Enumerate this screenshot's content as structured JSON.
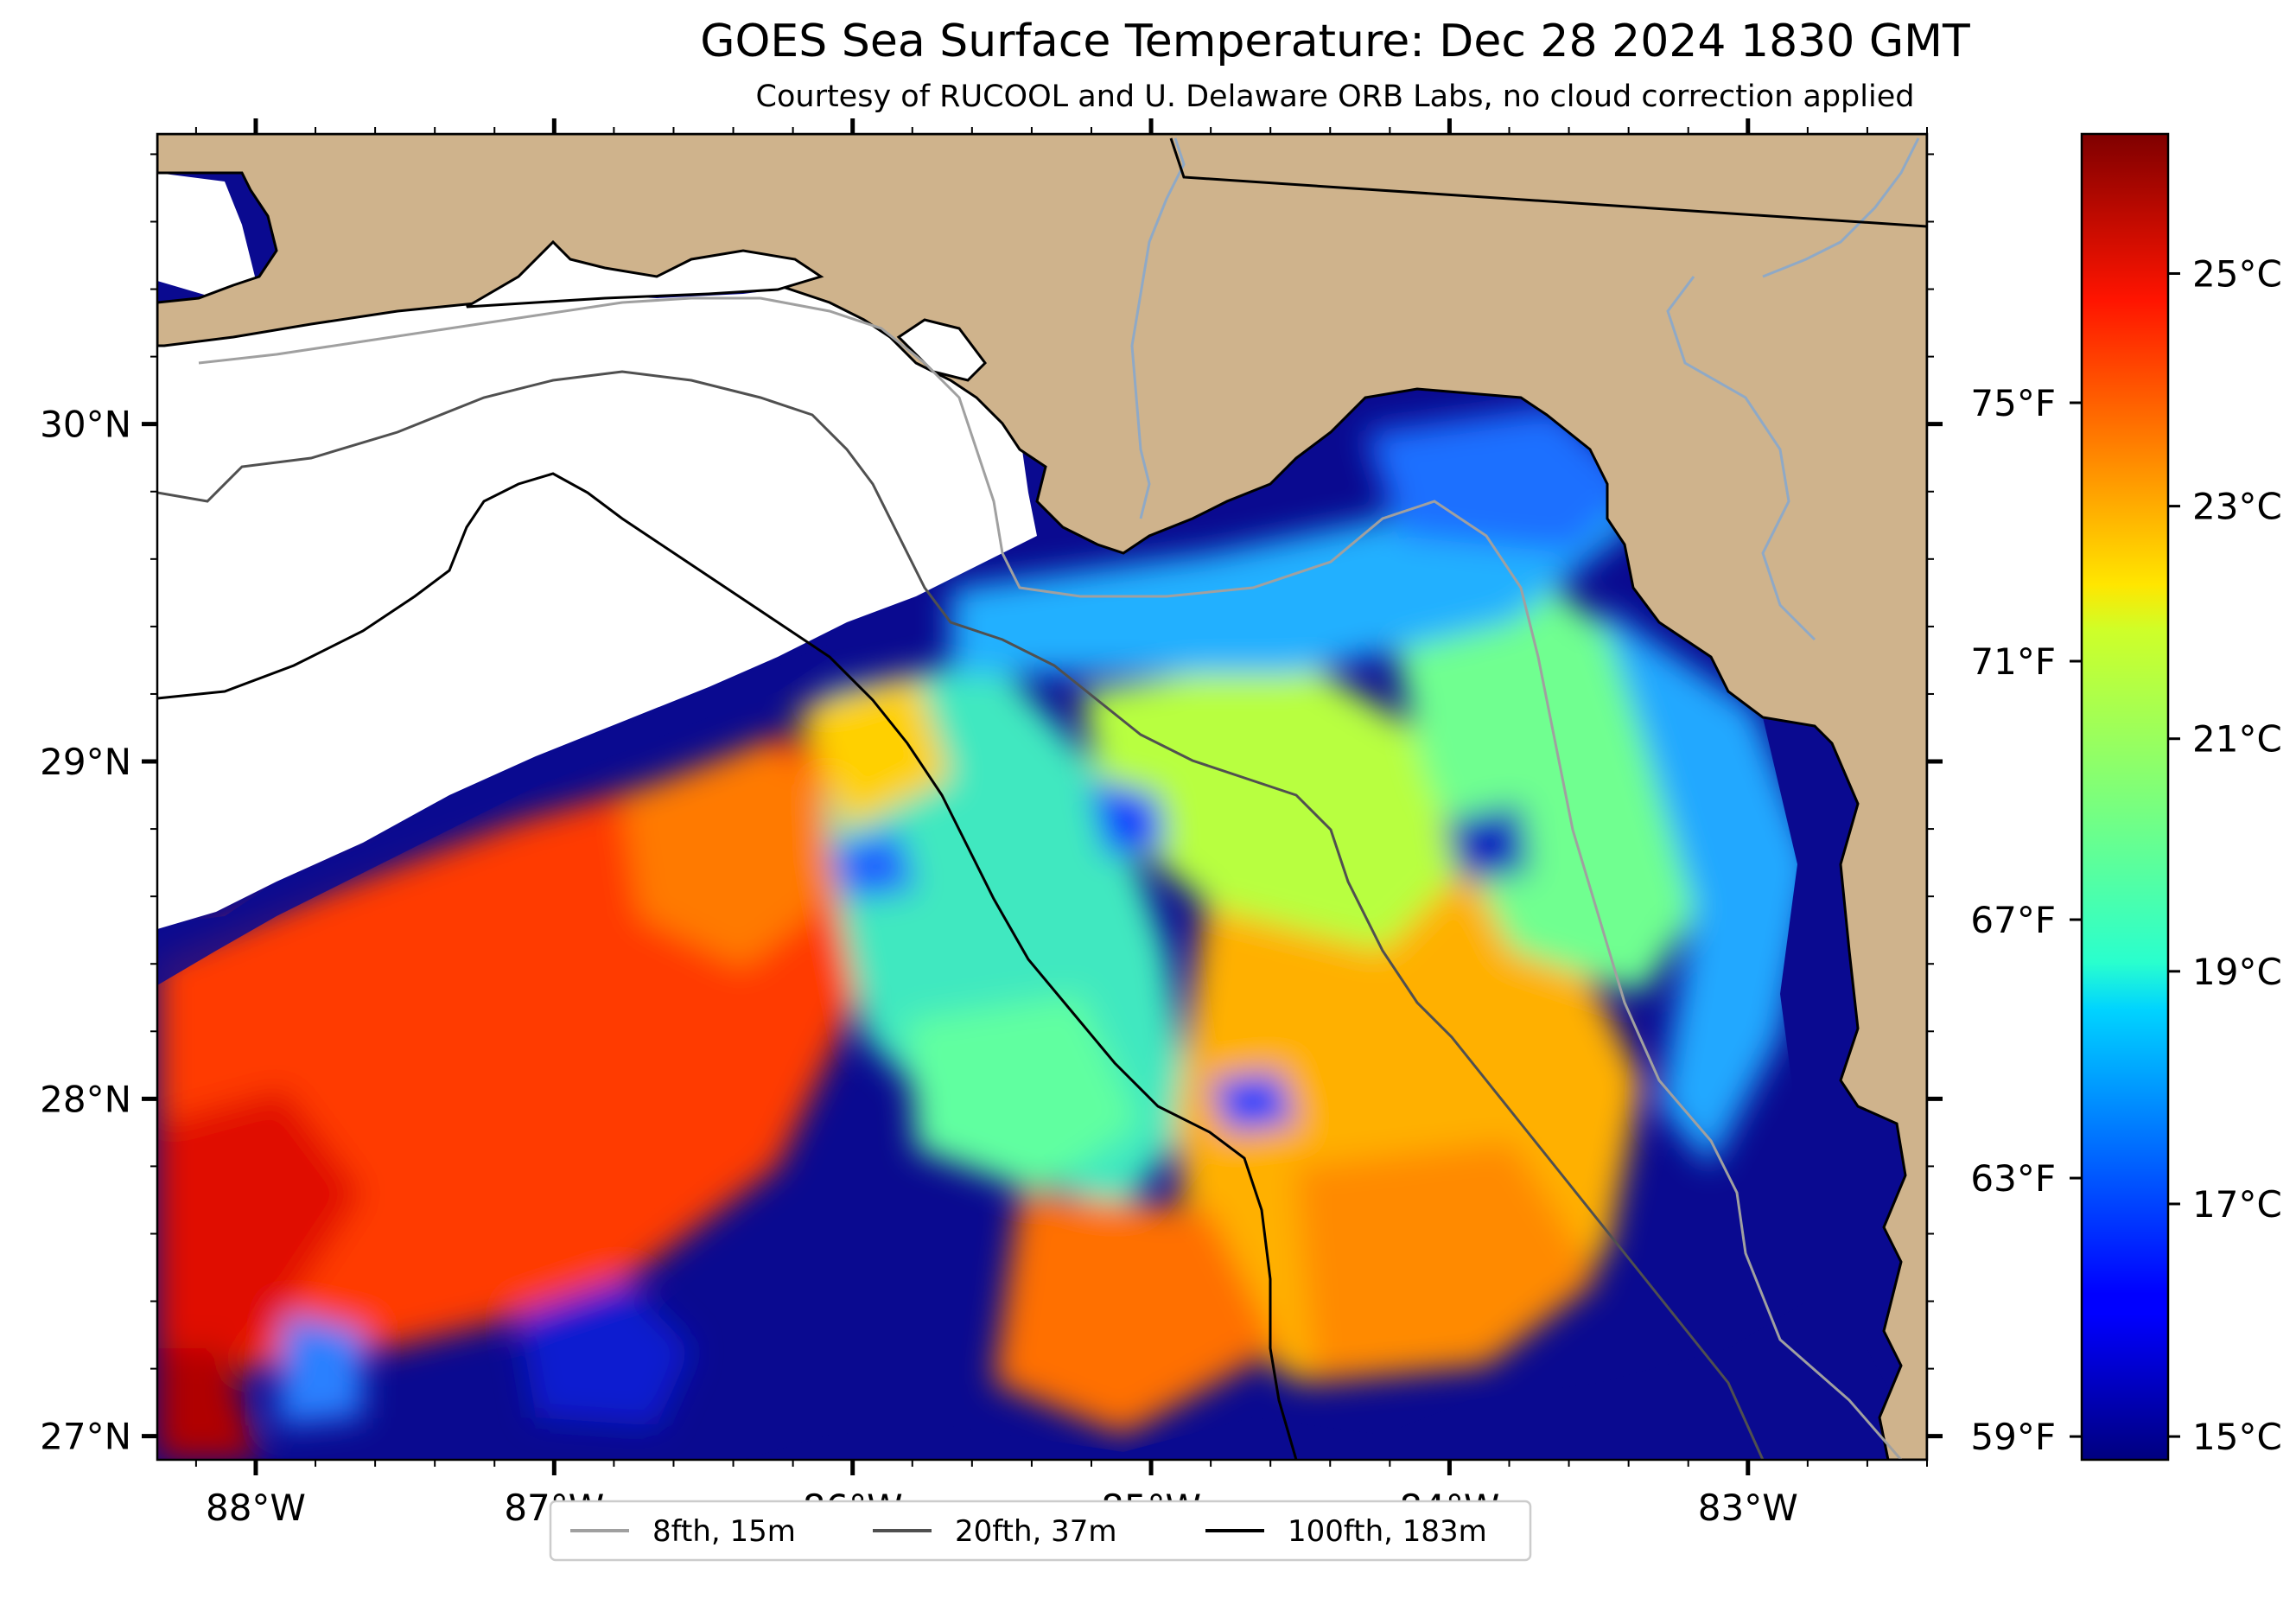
{
  "title": "GOES Sea Surface Temperature: Dec 28 2024 1830 GMT",
  "subtitle": "Courtesy of RUCOOL and U. Delaware ORB Labs, no cloud correction applied",
  "map": {
    "lon_range": [
      -88.33,
      -82.4
    ],
    "lat_range": [
      26.93,
      30.86
    ],
    "lon_ticks": [
      {
        "value": -88,
        "label": "88°W"
      },
      {
        "value": -87,
        "label": "87°W"
      },
      {
        "value": -86,
        "label": "86°W"
      },
      {
        "value": -85,
        "label": "85°W"
      },
      {
        "value": -84,
        "label": "84°W"
      },
      {
        "value": -83,
        "label": "83°W"
      }
    ],
    "lat_ticks": [
      {
        "value": 27,
        "label": "27°N"
      },
      {
        "value": 28,
        "label": "28°N"
      },
      {
        "value": 29,
        "label": "29°N"
      },
      {
        "value": 30,
        "label": "30°N"
      }
    ],
    "fahrenheit_ticks": [
      {
        "value": 59,
        "label": "59°F"
      },
      {
        "value": 63,
        "label": "63°F"
      },
      {
        "value": 67,
        "label": "67°F"
      },
      {
        "value": 71,
        "label": "71°F"
      },
      {
        "value": 75,
        "label": "75°F"
      }
    ],
    "land_color": "#cfb38c",
    "no_data_color": "#ffffff"
  },
  "colorbar": {
    "min_c": 14.8,
    "max_c": 26.2,
    "colormap": "jet",
    "ticks": [
      {
        "value": 15,
        "label": "15°C"
      },
      {
        "value": 17,
        "label": "17°C"
      },
      {
        "value": 19,
        "label": "19°C"
      },
      {
        "value": 21,
        "label": "21°C"
      },
      {
        "value": 23,
        "label": "23°C"
      },
      {
        "value": 25,
        "label": "25°C"
      }
    ]
  },
  "legend": {
    "items": [
      {
        "label": "8fth, 15m",
        "color": "#a0a0a0"
      },
      {
        "label": "20fth, 37m",
        "color": "#505050"
      },
      {
        "label": "100fth, 183m",
        "color": "#000000"
      }
    ]
  }
}
